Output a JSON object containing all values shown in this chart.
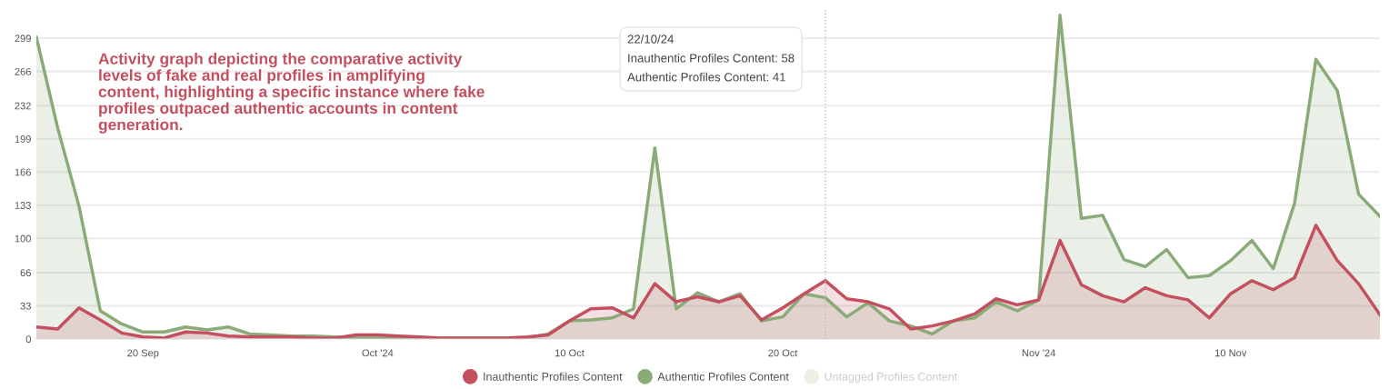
{
  "chart_data": {
    "type": "area",
    "x": [
      "2024-09-15",
      "2024-09-16",
      "2024-09-17",
      "2024-09-18",
      "2024-09-19",
      "2024-09-20",
      "2024-09-21",
      "2024-09-22",
      "2024-09-23",
      "2024-09-24",
      "2024-09-25",
      "2024-09-26",
      "2024-09-27",
      "2024-09-28",
      "2024-09-29",
      "2024-09-30",
      "2024-10-01",
      "2024-10-02",
      "2024-10-03",
      "2024-10-04",
      "2024-10-05",
      "2024-10-06",
      "2024-10-07",
      "2024-10-08",
      "2024-10-09",
      "2024-10-10",
      "2024-10-11",
      "2024-10-12",
      "2024-10-13",
      "2024-10-14",
      "2024-10-15",
      "2024-10-16",
      "2024-10-17",
      "2024-10-18",
      "2024-10-19",
      "2024-10-20",
      "2024-10-21",
      "2024-10-22",
      "2024-10-23",
      "2024-10-24",
      "2024-10-25",
      "2024-10-26",
      "2024-10-27",
      "2024-10-28",
      "2024-10-29",
      "2024-10-30",
      "2024-10-31",
      "2024-11-01",
      "2024-11-02",
      "2024-11-03",
      "2024-11-04",
      "2024-11-05",
      "2024-11-06",
      "2024-11-07",
      "2024-11-08",
      "2024-11-09",
      "2024-11-10",
      "2024-11-11",
      "2024-11-12",
      "2024-11-13",
      "2024-11-14",
      "2024-11-15",
      "2024-11-16",
      "2024-11-17"
    ],
    "series": [
      {
        "name": "Authentic Profiles Content",
        "color": "#8aab78",
        "values": [
          300,
          210,
          132,
          28,
          15,
          7,
          7,
          12,
          9,
          12,
          5,
          4,
          3,
          3,
          2,
          1,
          1,
          1,
          1,
          1,
          1,
          1,
          1,
          1,
          5,
          18,
          19,
          21,
          30,
          190,
          30,
          46,
          37,
          45,
          18,
          22,
          45,
          41,
          22,
          36,
          18,
          13,
          5,
          18,
          21,
          37,
          28,
          39,
          322,
          120,
          123,
          79,
          72,
          89,
          61,
          63,
          78,
          98,
          70,
          135,
          278,
          247,
          144,
          122
        ]
      },
      {
        "name": "Inauthentic Profiles Content",
        "color": "#c4505f",
        "values": [
          12,
          10,
          31,
          19,
          6,
          2,
          1,
          7,
          6,
          3,
          2,
          2,
          2,
          1,
          1,
          4,
          4,
          3,
          2,
          1,
          1,
          1,
          1,
          2,
          4,
          18,
          30,
          31,
          21,
          55,
          37,
          42,
          37,
          43,
          19,
          31,
          45,
          58,
          40,
          37,
          30,
          10,
          13,
          18,
          25,
          40,
          34,
          39,
          98,
          54,
          43,
          37,
          51,
          43,
          39,
          21,
          45,
          58,
          49,
          61,
          113,
          78,
          55,
          24
        ]
      },
      {
        "name": "Untagged Profiles Content",
        "color": "#eef0e6",
        "values": [
          null,
          null,
          null,
          null,
          null,
          null,
          null,
          null,
          null,
          null,
          null,
          null,
          null,
          null,
          null,
          null,
          null,
          null,
          null,
          null,
          null,
          null,
          null,
          null,
          null,
          null,
          null,
          null,
          null,
          null,
          null,
          null,
          null,
          null,
          null,
          null,
          null,
          null,
          null,
          null,
          null,
          null,
          null,
          null,
          null,
          null,
          null,
          null,
          null,
          null,
          null,
          null,
          null,
          null,
          null,
          null,
          null,
          null,
          null,
          null,
          null,
          null,
          null,
          null
        ]
      }
    ],
    "ylim": [
      0,
      328
    ],
    "yticks": [
      0,
      33,
      66,
      100,
      133,
      166,
      199,
      232,
      266,
      299
    ],
    "xlim": [
      "2024-09-15",
      "2024-11-17"
    ],
    "xticks": [
      {
        "value": "2024-09-20",
        "label": "20 Sep"
      },
      {
        "value": "2024-10-01",
        "label": "Oct '24"
      },
      {
        "value": "2024-10-10",
        "label": "10 Oct"
      },
      {
        "value": "2024-10-20",
        "label": "20 Oct"
      },
      {
        "value": "2024-11-01",
        "label": "Nov '24"
      },
      {
        "value": "2024-11-10",
        "label": "10 Nov"
      }
    ],
    "grid": "y",
    "legend": "bottom",
    "marker": "none",
    "line_style": "solid",
    "ref_lines": [
      {
        "axis": "x",
        "value": "2024-10-22",
        "color": "#bbbbbb",
        "line_style": "dotted"
      }
    ],
    "annotations": [
      "Activity graph depicting the comparative activity\nlevels of fake and real profiles in amplifying\ncontent, highlighting a specific instance where fake\nprofiles outpaced authentic accounts in content\ngeneration.",
      "22/10/24\nInauthentic Profiles Content: 58\nAuthentic Profiles Content: 41"
    ]
  }
}
